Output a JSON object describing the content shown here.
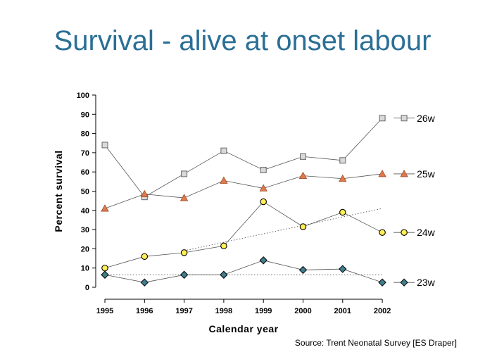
{
  "title": "Survival - alive at onset labour",
  "source": "Source: Trent Neonatal Survey [ES Draper]",
  "chart_data": {
    "type": "line",
    "xlabel": "Calendar year",
    "ylabel": "Percent survival",
    "ylim": [
      0,
      100
    ],
    "yticks": [
      0,
      10,
      20,
      30,
      40,
      50,
      60,
      70,
      80,
      90,
      100
    ],
    "x": [
      "1995",
      "1996",
      "1997",
      "1998",
      "1999",
      "2000",
      "2001",
      "2002"
    ],
    "grid": false,
    "legend": "right-of-series",
    "series": [
      {
        "name": "26w",
        "marker": "square",
        "color": "#d9d9d9",
        "values": [
          74,
          47,
          59,
          71,
          61,
          68,
          66,
          88
        ]
      },
      {
        "name": "25w",
        "marker": "triangle",
        "color": "#e07a4c",
        "values": [
          41,
          48.5,
          46.5,
          55.5,
          51.5,
          58,
          56.5,
          59
        ]
      },
      {
        "name": "24w",
        "marker": "circle",
        "color": "#ffee55",
        "values": [
          10,
          16,
          18,
          21.5,
          44.5,
          31.5,
          39,
          28.5
        ]
      },
      {
        "name": "23w",
        "marker": "diamond",
        "color": "#3f7f8c",
        "values": [
          6.5,
          2.5,
          6.5,
          6.5,
          14,
          9,
          9.5,
          2.5
        ]
      }
    ],
    "trend_lines": [
      {
        "series": "24w",
        "style": "dotted",
        "from": [
          "1997",
          19
        ],
        "to": [
          "2002",
          41
        ]
      },
      {
        "series": "23w",
        "style": "dotted",
        "from": [
          "1995",
          6.5
        ],
        "to": [
          "2002",
          6.5
        ]
      }
    ]
  }
}
